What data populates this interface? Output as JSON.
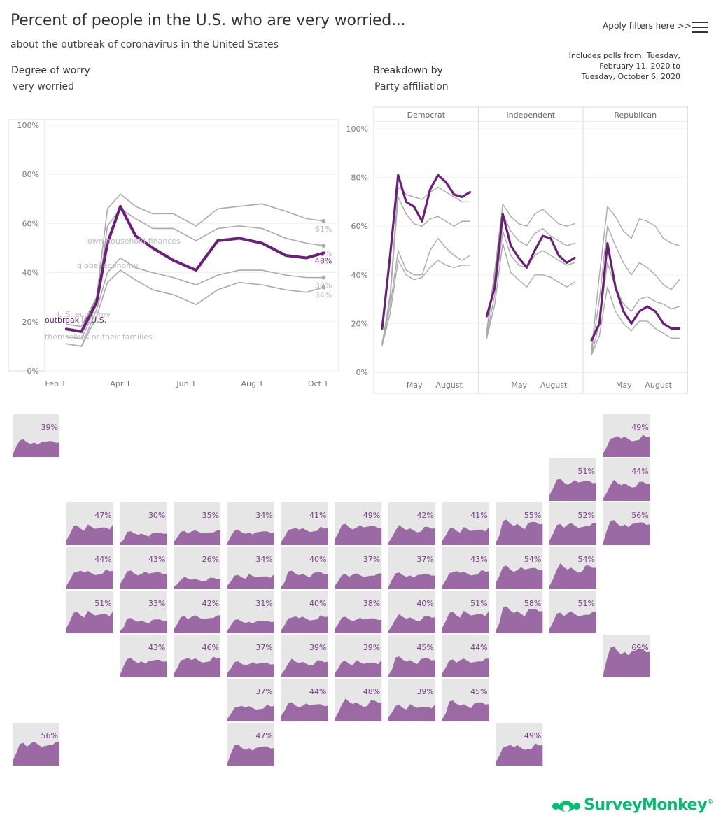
{
  "header": {
    "title": "Percent of people in the U.S. who are very worried...",
    "subtitle": "about the outbreak of coronavirus in the United States",
    "filters_label": "Apply filters here >>",
    "polls_note": [
      "Includes polls from: Tuesday,",
      "February 11, 2020 to",
      "Tuesday, October 6, 2020"
    ]
  },
  "controls": {
    "degree_label": "Degree of worry",
    "degree_value": "very worried",
    "breakdown_label": "Breakdown by",
    "breakdown_value": "Party affiliation"
  },
  "brand": {
    "name": "SurveyMonkey",
    "trademark": "®",
    "color": "#00bf6f"
  },
  "colors": {
    "highlight": "#6b1f7a",
    "other": "#aaaaaa",
    "tile_fill": "#9b6aa5",
    "tile_bg": "#e6e6e6"
  },
  "chart_data": [
    {
      "type": "line",
      "ylim": [
        0,
        100
      ],
      "y_ticks": [
        "0%",
        "20%",
        "40%",
        "60%",
        "80%",
        "100%"
      ],
      "x_ticks": [
        "Feb 1",
        "Apr 1",
        "Jun 1",
        "Aug 1",
        "Oct 1"
      ],
      "x_tick_dates": [
        "2020-02-01",
        "2020-04-01",
        "2020-06-01",
        "2020-08-01",
        "2020-10-01"
      ],
      "series": [
        {
          "name": "outbreak in U.S.",
          "highlight": true,
          "end_label": "48%",
          "x_dates": [
            "2020-02-11",
            "2020-02-25",
            "2020-03-10",
            "2020-03-20",
            "2020-04-01",
            "2020-04-15",
            "2020-05-01",
            "2020-05-20",
            "2020-06-10",
            "2020-06-30",
            "2020-07-20",
            "2020-08-10",
            "2020-09-01",
            "2020-09-20",
            "2020-10-06"
          ],
          "y": [
            17,
            16,
            28,
            52,
            67,
            55,
            50,
            45,
            41,
            53,
            54,
            52,
            47,
            46,
            48
          ]
        },
        {
          "name": "U.S. economy",
          "highlight": false,
          "end_label": "61%",
          "x_dates": [
            "2020-02-11",
            "2020-02-25",
            "2020-03-10",
            "2020-03-20",
            "2020-04-01",
            "2020-04-15",
            "2020-05-01",
            "2020-05-20",
            "2020-06-10",
            "2020-06-30",
            "2020-07-20",
            "2020-08-10",
            "2020-09-01",
            "2020-09-20",
            "2020-10-06"
          ],
          "y": [
            19,
            18,
            30,
            66,
            72,
            67,
            64,
            64,
            59,
            66,
            67,
            68,
            65,
            62,
            61
          ]
        },
        {
          "name": "own household finances",
          "highlight": false,
          "end_label": "51%",
          "x_dates": [
            "2020-02-11",
            "2020-02-25",
            "2020-03-10",
            "2020-03-20",
            "2020-04-01",
            "2020-04-15",
            "2020-05-01",
            "2020-05-20",
            "2020-06-10",
            "2020-06-30",
            "2020-07-20",
            "2020-08-10",
            "2020-09-01",
            "2020-09-20",
            "2020-10-06"
          ],
          "y": [
            14,
            13,
            27,
            59,
            66,
            62,
            58,
            58,
            53,
            58,
            59,
            58,
            54,
            52,
            51
          ]
        },
        {
          "name": "global economy",
          "highlight": false,
          "end_label": "38%",
          "x_dates": [
            "2020-02-11",
            "2020-02-25",
            "2020-03-10",
            "2020-03-20",
            "2020-04-01",
            "2020-04-15",
            "2020-05-01",
            "2020-05-20",
            "2020-06-10",
            "2020-06-30",
            "2020-07-20",
            "2020-08-10",
            "2020-09-01",
            "2020-09-20",
            "2020-10-06"
          ],
          "y": [
            11,
            10,
            25,
            40,
            46,
            42,
            40,
            38,
            35,
            39,
            41,
            41,
            39,
            38,
            38
          ]
        },
        {
          "name": "themselves or their families",
          "highlight": false,
          "end_label": "34%",
          "x_dates": [
            "2020-02-11",
            "2020-02-25",
            "2020-03-10",
            "2020-03-20",
            "2020-04-01",
            "2020-04-15",
            "2020-05-01",
            "2020-05-20",
            "2020-06-10",
            "2020-06-30",
            "2020-07-20",
            "2020-08-10",
            "2020-09-01",
            "2020-09-20",
            "2020-10-06"
          ],
          "y": [
            11,
            10,
            22,
            36,
            41,
            37,
            33,
            31,
            27,
            33,
            36,
            35,
            33,
            32,
            34
          ]
        }
      ]
    },
    {
      "type": "line",
      "ylim": [
        0,
        100
      ],
      "y_ticks": [
        "0%",
        "20%",
        "40%",
        "60%",
        "80%",
        "100%"
      ],
      "x_ticks": [
        "May",
        "August"
      ],
      "panels": [
        {
          "name": "Democrat",
          "series": [
            {
              "highlight": true,
              "y": [
                18,
                48,
                81,
                70,
                68,
                62,
                75,
                81,
                78,
                73,
                72,
                74
              ]
            },
            {
              "highlight": false,
              "y": [
                11,
                32,
                76,
                73,
                72,
                71,
                74,
                76,
                74,
                72,
                70,
                70
              ]
            },
            {
              "highlight": false,
              "y": [
                12,
                30,
                72,
                65,
                61,
                60,
                63,
                64,
                62,
                60,
                62,
                62
              ]
            },
            {
              "highlight": false,
              "y": [
                12,
                27,
                50,
                42,
                40,
                40,
                50,
                55,
                51,
                48,
                46,
                48
              ]
            },
            {
              "highlight": false,
              "y": [
                11,
                24,
                46,
                40,
                38,
                39,
                43,
                46,
                44,
                43,
                44,
                44
              ]
            }
          ]
        },
        {
          "name": "Independent",
          "series": [
            {
              "highlight": true,
              "y": [
                23,
                35,
                65,
                52,
                47,
                43,
                50,
                56,
                55,
                48,
                45,
                47
              ]
            },
            {
              "highlight": false,
              "y": [
                17,
                42,
                69,
                64,
                61,
                60,
                65,
                67,
                64,
                61,
                60,
                61
              ]
            },
            {
              "highlight": false,
              "y": [
                16,
                40,
                65,
                58,
                54,
                52,
                57,
                59,
                56,
                54,
                52,
                53
              ]
            },
            {
              "highlight": false,
              "y": [
                15,
                32,
                58,
                48,
                44,
                43,
                48,
                50,
                48,
                46,
                44,
                45
              ]
            },
            {
              "highlight": false,
              "y": [
                14,
                28,
                53,
                41,
                38,
                35,
                40,
                40,
                39,
                37,
                35,
                37
              ]
            }
          ]
        },
        {
          "name": "Republican",
          "series": [
            {
              "highlight": true,
              "y": [
                13,
                20,
                53,
                35,
                25,
                20,
                25,
                27,
                25,
                20,
                18,
                18
              ]
            },
            {
              "highlight": false,
              "y": [
                9,
                40,
                68,
                64,
                58,
                55,
                63,
                62,
                60,
                55,
                53,
                52
              ]
            },
            {
              "highlight": false,
              "y": [
                8,
                30,
                60,
                52,
                45,
                40,
                45,
                43,
                40,
                36,
                34,
                38
              ]
            },
            {
              "highlight": false,
              "y": [
                7,
                20,
                45,
                35,
                28,
                25,
                30,
                31,
                29,
                28,
                26,
                27
              ]
            },
            {
              "highlight": false,
              "y": [
                7,
                15,
                35,
                25,
                20,
                17,
                21,
                21,
                18,
                16,
                14,
                14
              ]
            }
          ]
        }
      ]
    },
    {
      "type": "area",
      "tiles": [
        {
          "row": 0,
          "col": 0,
          "label": "39%"
        },
        {
          "row": 0,
          "col": 11,
          "label": "49%"
        },
        {
          "row": 1,
          "col": 10,
          "label": "51%"
        },
        {
          "row": 1,
          "col": 11,
          "label": "44%"
        },
        {
          "row": 2,
          "col": 1,
          "label": "47%"
        },
        {
          "row": 2,
          "col": 2,
          "label": "30%"
        },
        {
          "row": 2,
          "col": 3,
          "label": "35%"
        },
        {
          "row": 2,
          "col": 4,
          "label": "34%"
        },
        {
          "row": 2,
          "col": 5,
          "label": "41%"
        },
        {
          "row": 2,
          "col": 6,
          "label": "49%"
        },
        {
          "row": 2,
          "col": 7,
          "label": "42%"
        },
        {
          "row": 2,
          "col": 8,
          "label": "41%"
        },
        {
          "row": 2,
          "col": 9,
          "label": "55%"
        },
        {
          "row": 2,
          "col": 10,
          "label": "52%"
        },
        {
          "row": 2,
          "col": 11,
          "label": "56%"
        },
        {
          "row": 3,
          "col": 1,
          "label": "44%"
        },
        {
          "row": 3,
          "col": 2,
          "label": "43%"
        },
        {
          "row": 3,
          "col": 3,
          "label": "26%"
        },
        {
          "row": 3,
          "col": 4,
          "label": "34%"
        },
        {
          "row": 3,
          "col": 5,
          "label": "40%"
        },
        {
          "row": 3,
          "col": 6,
          "label": "37%"
        },
        {
          "row": 3,
          "col": 7,
          "label": "37%"
        },
        {
          "row": 3,
          "col": 8,
          "label": "43%"
        },
        {
          "row": 3,
          "col": 9,
          "label": "54%"
        },
        {
          "row": 3,
          "col": 10,
          "label": "54%"
        },
        {
          "row": 4,
          "col": 1,
          "label": "51%"
        },
        {
          "row": 4,
          "col": 2,
          "label": "33%"
        },
        {
          "row": 4,
          "col": 3,
          "label": "42%"
        },
        {
          "row": 4,
          "col": 4,
          "label": "31%"
        },
        {
          "row": 4,
          "col": 5,
          "label": "40%"
        },
        {
          "row": 4,
          "col": 6,
          "label": "38%"
        },
        {
          "row": 4,
          "col": 7,
          "label": "40%"
        },
        {
          "row": 4,
          "col": 8,
          "label": "51%"
        },
        {
          "row": 4,
          "col": 9,
          "label": "58%"
        },
        {
          "row": 4,
          "col": 10,
          "label": "51%"
        },
        {
          "row": 5,
          "col": 2,
          "label": "43%"
        },
        {
          "row": 5,
          "col": 3,
          "label": "46%"
        },
        {
          "row": 5,
          "col": 4,
          "label": "37%"
        },
        {
          "row": 5,
          "col": 5,
          "label": "39%"
        },
        {
          "row": 5,
          "col": 6,
          "label": "39%"
        },
        {
          "row": 5,
          "col": 7,
          "label": "45%"
        },
        {
          "row": 5,
          "col": 8,
          "label": "44%"
        },
        {
          "row": 5,
          "col": 11,
          "label": "69%"
        },
        {
          "row": 6,
          "col": 4,
          "label": "37%"
        },
        {
          "row": 6,
          "col": 5,
          "label": "44%"
        },
        {
          "row": 6,
          "col": 6,
          "label": "48%"
        },
        {
          "row": 6,
          "col": 7,
          "label": "39%"
        },
        {
          "row": 6,
          "col": 8,
          "label": "45%"
        },
        {
          "row": 7,
          "col": 0,
          "label": "56%"
        },
        {
          "row": 7,
          "col": 4,
          "label": "47%"
        },
        {
          "row": 7,
          "col": 9,
          "label": "49%"
        }
      ]
    }
  ]
}
